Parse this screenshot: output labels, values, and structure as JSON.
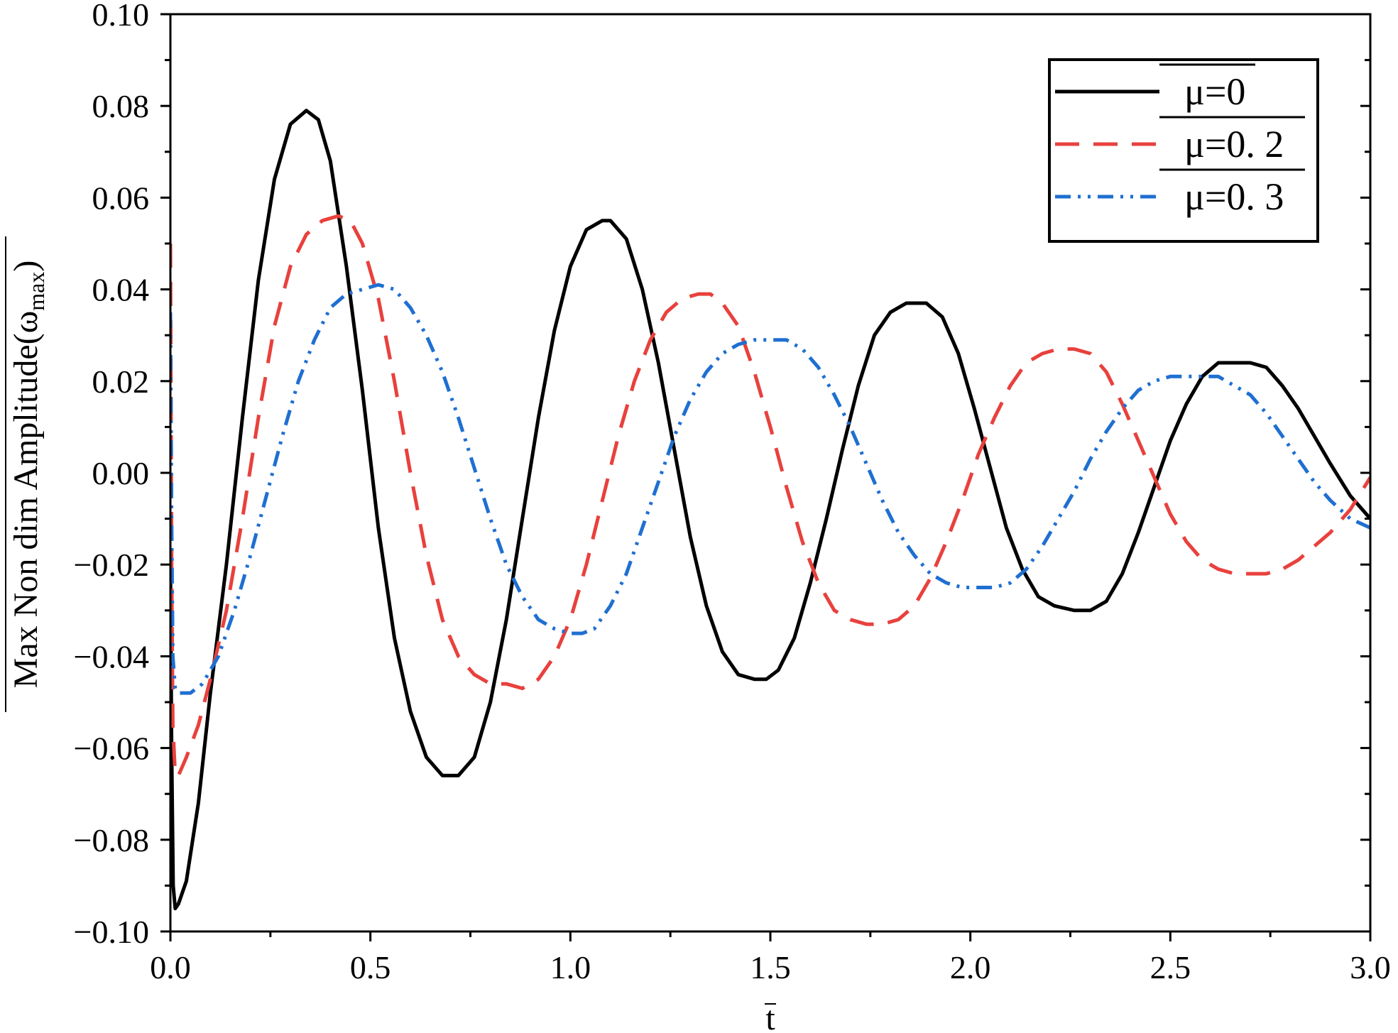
{
  "chart_data": {
    "type": "line",
    "xlabel": "t",
    "ylabel": "Max Non dim Amplitude(ω",
    "ylabel_sub": "max",
    "ylabel_close": ")",
    "xlim": [
      0,
      3
    ],
    "ylim": [
      -0.1,
      0.1
    ],
    "x_ticks": [
      "0.0",
      "0.5",
      "1.0",
      "1.5",
      "2.0",
      "2.5",
      "3.0"
    ],
    "y_ticks": [
      "0.10",
      "0.08",
      "0.06",
      "0.04",
      "0.02",
      "0.00",
      "−0.02",
      "−0.04",
      "−0.06",
      "−0.08",
      "−0.10"
    ],
    "grid": false,
    "legend_position": "top-right",
    "series": [
      {
        "name": "μ=0",
        "color": "#000000",
        "style": "solid",
        "points": [
          [
            0.0,
            -0.02
          ],
          [
            0.003,
            -0.06
          ],
          [
            0.007,
            -0.09
          ],
          [
            0.012,
            -0.095
          ],
          [
            0.02,
            -0.094
          ],
          [
            0.04,
            -0.089
          ],
          [
            0.07,
            -0.072
          ],
          [
            0.1,
            -0.048
          ],
          [
            0.14,
            -0.02
          ],
          [
            0.18,
            0.012
          ],
          [
            0.22,
            0.042
          ],
          [
            0.26,
            0.064
          ],
          [
            0.3,
            0.076
          ],
          [
            0.34,
            0.079
          ],
          [
            0.37,
            0.077
          ],
          [
            0.4,
            0.068
          ],
          [
            0.44,
            0.045
          ],
          [
            0.48,
            0.018
          ],
          [
            0.52,
            -0.012
          ],
          [
            0.56,
            -0.036
          ],
          [
            0.6,
            -0.052
          ],
          [
            0.64,
            -0.062
          ],
          [
            0.68,
            -0.066
          ],
          [
            0.72,
            -0.066
          ],
          [
            0.76,
            -0.062
          ],
          [
            0.8,
            -0.05
          ],
          [
            0.84,
            -0.032
          ],
          [
            0.88,
            -0.01
          ],
          [
            0.92,
            0.012
          ],
          [
            0.96,
            0.031
          ],
          [
            1.0,
            0.045
          ],
          [
            1.04,
            0.053
          ],
          [
            1.08,
            0.055
          ],
          [
            1.1,
            0.055
          ],
          [
            1.14,
            0.051
          ],
          [
            1.18,
            0.04
          ],
          [
            1.22,
            0.024
          ],
          [
            1.26,
            0.005
          ],
          [
            1.3,
            -0.014
          ],
          [
            1.34,
            -0.029
          ],
          [
            1.38,
            -0.039
          ],
          [
            1.42,
            -0.044
          ],
          [
            1.46,
            -0.045
          ],
          [
            1.49,
            -0.045
          ],
          [
            1.52,
            -0.043
          ],
          [
            1.56,
            -0.036
          ],
          [
            1.6,
            -0.024
          ],
          [
            1.64,
            -0.01
          ],
          [
            1.68,
            0.005
          ],
          [
            1.72,
            0.019
          ],
          [
            1.76,
            0.03
          ],
          [
            1.8,
            0.035
          ],
          [
            1.84,
            0.037
          ],
          [
            1.89,
            0.037
          ],
          [
            1.93,
            0.034
          ],
          [
            1.97,
            0.026
          ],
          [
            2.01,
            0.014
          ],
          [
            2.05,
            0.001
          ],
          [
            2.09,
            -0.012
          ],
          [
            2.13,
            -0.021
          ],
          [
            2.17,
            -0.027
          ],
          [
            2.21,
            -0.029
          ],
          [
            2.26,
            -0.03
          ],
          [
            2.3,
            -0.03
          ],
          [
            2.34,
            -0.028
          ],
          [
            2.38,
            -0.022
          ],
          [
            2.42,
            -0.013
          ],
          [
            2.46,
            -0.003
          ],
          [
            2.5,
            0.007
          ],
          [
            2.54,
            0.015
          ],
          [
            2.58,
            0.021
          ],
          [
            2.62,
            0.024
          ],
          [
            2.66,
            0.024
          ],
          [
            2.7,
            0.024
          ],
          [
            2.74,
            0.023
          ],
          [
            2.78,
            0.019
          ],
          [
            2.82,
            0.014
          ],
          [
            2.86,
            0.008
          ],
          [
            2.9,
            0.002
          ],
          [
            2.95,
            -0.005
          ],
          [
            3.0,
            -0.01
          ]
        ]
      },
      {
        "name": "μ=0. 2",
        "color": "#e8413d",
        "style": "dashed",
        "points": [
          [
            0.0,
            0.05
          ],
          [
            0.003,
            -0.02
          ],
          [
            0.006,
            -0.055
          ],
          [
            0.012,
            -0.066
          ],
          [
            0.02,
            -0.066
          ],
          [
            0.04,
            -0.062
          ],
          [
            0.07,
            -0.055
          ],
          [
            0.1,
            -0.045
          ],
          [
            0.14,
            -0.03
          ],
          [
            0.18,
            -0.01
          ],
          [
            0.22,
            0.012
          ],
          [
            0.26,
            0.032
          ],
          [
            0.3,
            0.045
          ],
          [
            0.34,
            0.052
          ],
          [
            0.38,
            0.055
          ],
          [
            0.42,
            0.056
          ],
          [
            0.45,
            0.055
          ],
          [
            0.48,
            0.05
          ],
          [
            0.52,
            0.038
          ],
          [
            0.56,
            0.02
          ],
          [
            0.6,
            0.0
          ],
          [
            0.64,
            -0.018
          ],
          [
            0.68,
            -0.032
          ],
          [
            0.72,
            -0.04
          ],
          [
            0.76,
            -0.044
          ],
          [
            0.8,
            -0.046
          ],
          [
            0.84,
            -0.046
          ],
          [
            0.88,
            -0.047
          ],
          [
            0.92,
            -0.045
          ],
          [
            0.96,
            -0.04
          ],
          [
            1.0,
            -0.032
          ],
          [
            1.04,
            -0.02
          ],
          [
            1.08,
            -0.006
          ],
          [
            1.12,
            0.008
          ],
          [
            1.16,
            0.02
          ],
          [
            1.2,
            0.029
          ],
          [
            1.24,
            0.035
          ],
          [
            1.28,
            0.038
          ],
          [
            1.32,
            0.039
          ],
          [
            1.35,
            0.039
          ],
          [
            1.38,
            0.037
          ],
          [
            1.42,
            0.032
          ],
          [
            1.46,
            0.022
          ],
          [
            1.5,
            0.01
          ],
          [
            1.54,
            -0.003
          ],
          [
            1.58,
            -0.015
          ],
          [
            1.62,
            -0.024
          ],
          [
            1.66,
            -0.03
          ],
          [
            1.7,
            -0.032
          ],
          [
            1.74,
            -0.033
          ],
          [
            1.78,
            -0.033
          ],
          [
            1.82,
            -0.032
          ],
          [
            1.86,
            -0.029
          ],
          [
            1.9,
            -0.023
          ],
          [
            1.94,
            -0.015
          ],
          [
            1.98,
            -0.006
          ],
          [
            2.02,
            0.004
          ],
          [
            2.06,
            0.012
          ],
          [
            2.1,
            0.019
          ],
          [
            2.14,
            0.024
          ],
          [
            2.18,
            0.026
          ],
          [
            2.22,
            0.027
          ],
          [
            2.26,
            0.027
          ],
          [
            2.3,
            0.026
          ],
          [
            2.34,
            0.022
          ],
          [
            2.38,
            0.015
          ],
          [
            2.42,
            0.007
          ],
          [
            2.46,
            -0.001
          ],
          [
            2.5,
            -0.009
          ],
          [
            2.54,
            -0.015
          ],
          [
            2.58,
            -0.019
          ],
          [
            2.62,
            -0.021
          ],
          [
            2.66,
            -0.022
          ],
          [
            2.7,
            -0.022
          ],
          [
            2.74,
            -0.022
          ],
          [
            2.78,
            -0.021
          ],
          [
            2.82,
            -0.019
          ],
          [
            2.86,
            -0.016
          ],
          [
            2.9,
            -0.013
          ],
          [
            2.95,
            -0.008
          ],
          [
            3.0,
            -0.001
          ]
        ]
      },
      {
        "name": "μ=0. 3",
        "color": "#1f6fd1",
        "style": "dash-dot-dot",
        "points": [
          [
            0.0,
            0.035
          ],
          [
            0.003,
            -0.01
          ],
          [
            0.006,
            -0.04
          ],
          [
            0.012,
            -0.047
          ],
          [
            0.02,
            -0.048
          ],
          [
            0.05,
            -0.048
          ],
          [
            0.08,
            -0.046
          ],
          [
            0.12,
            -0.04
          ],
          [
            0.16,
            -0.03
          ],
          [
            0.2,
            -0.018
          ],
          [
            0.24,
            -0.005
          ],
          [
            0.28,
            0.008
          ],
          [
            0.32,
            0.02
          ],
          [
            0.36,
            0.029
          ],
          [
            0.4,
            0.036
          ],
          [
            0.44,
            0.039
          ],
          [
            0.48,
            0.04
          ],
          [
            0.52,
            0.041
          ],
          [
            0.56,
            0.04
          ],
          [
            0.6,
            0.036
          ],
          [
            0.64,
            0.03
          ],
          [
            0.68,
            0.022
          ],
          [
            0.72,
            0.012
          ],
          [
            0.76,
            0.001
          ],
          [
            0.8,
            -0.01
          ],
          [
            0.84,
            -0.02
          ],
          [
            0.88,
            -0.027
          ],
          [
            0.92,
            -0.032
          ],
          [
            0.96,
            -0.034
          ],
          [
            1.0,
            -0.035
          ],
          [
            1.03,
            -0.035
          ],
          [
            1.06,
            -0.034
          ],
          [
            1.1,
            -0.029
          ],
          [
            1.14,
            -0.022
          ],
          [
            1.18,
            -0.012
          ],
          [
            1.22,
            -0.002
          ],
          [
            1.26,
            0.008
          ],
          [
            1.3,
            0.016
          ],
          [
            1.34,
            0.022
          ],
          [
            1.38,
            0.026
          ],
          [
            1.42,
            0.028
          ],
          [
            1.46,
            0.029
          ],
          [
            1.5,
            0.029
          ],
          [
            1.54,
            0.029
          ],
          [
            1.58,
            0.027
          ],
          [
            1.62,
            0.023
          ],
          [
            1.66,
            0.017
          ],
          [
            1.7,
            0.01
          ],
          [
            1.74,
            0.002
          ],
          [
            1.78,
            -0.006
          ],
          [
            1.82,
            -0.013
          ],
          [
            1.86,
            -0.018
          ],
          [
            1.9,
            -0.022
          ],
          [
            1.94,
            -0.024
          ],
          [
            1.98,
            -0.025
          ],
          [
            2.02,
            -0.025
          ],
          [
            2.06,
            -0.025
          ],
          [
            2.1,
            -0.024
          ],
          [
            2.14,
            -0.021
          ],
          [
            2.18,
            -0.016
          ],
          [
            2.22,
            -0.01
          ],
          [
            2.26,
            -0.004
          ],
          [
            2.3,
            0.003
          ],
          [
            2.34,
            0.009
          ],
          [
            2.38,
            0.014
          ],
          [
            2.42,
            0.018
          ],
          [
            2.46,
            0.02
          ],
          [
            2.5,
            0.021
          ],
          [
            2.54,
            0.021
          ],
          [
            2.58,
            0.021
          ],
          [
            2.62,
            0.021
          ],
          [
            2.66,
            0.019
          ],
          [
            2.7,
            0.017
          ],
          [
            2.74,
            0.013
          ],
          [
            2.78,
            0.008
          ],
          [
            2.82,
            0.003
          ],
          [
            2.86,
            -0.002
          ],
          [
            2.9,
            -0.006
          ],
          [
            2.95,
            -0.01
          ],
          [
            3.0,
            -0.012
          ]
        ]
      }
    ]
  }
}
